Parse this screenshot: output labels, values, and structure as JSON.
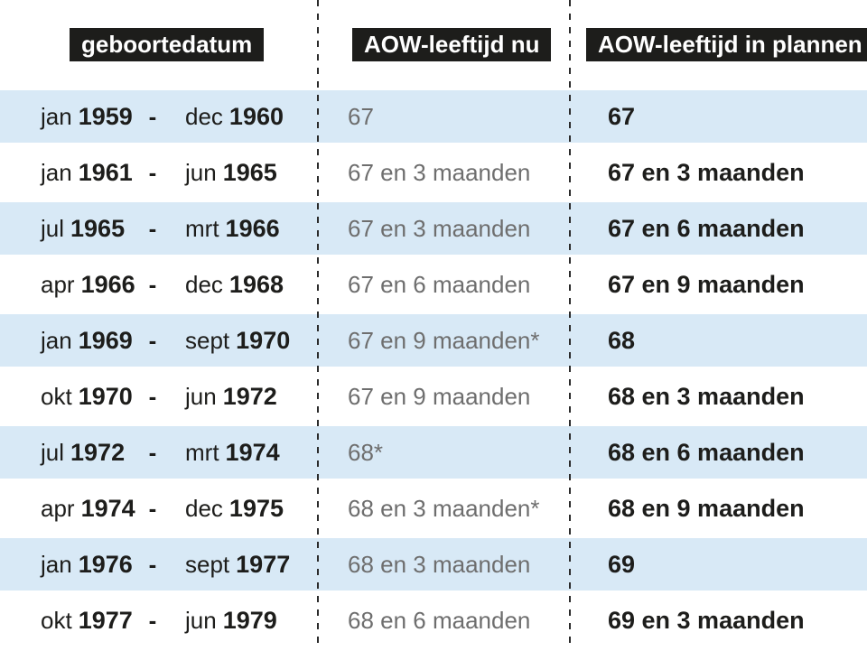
{
  "colors": {
    "header_bg": "#1d1d1b",
    "header_text": "#ffffff",
    "row_highlight": "#d8e9f6",
    "text_primary": "#1d1d1b",
    "text_secondary": "#6e6e6e",
    "divider": "#2b2b2b"
  },
  "table": {
    "headers": [
      "geboortedatum",
      "AOW-leeftijd nu",
      "AOW-leeftijd in plannen"
    ],
    "range_separator": "-",
    "rows": [
      {
        "from_month": "jan",
        "from_year": "1959",
        "to_month": "dec",
        "to_year": "1960",
        "now": "67",
        "plan": "67"
      },
      {
        "from_month": "jan",
        "from_year": "1961",
        "to_month": "jun",
        "to_year": "1965",
        "now": "67 en 3 maanden",
        "plan": "67 en 3 maanden"
      },
      {
        "from_month": "jul",
        "from_year": "1965",
        "to_month": "mrt",
        "to_year": "1966",
        "now": "67 en 3 maanden",
        "plan": "67 en 6 maanden"
      },
      {
        "from_month": "apr",
        "from_year": "1966",
        "to_month": "dec",
        "to_year": "1968",
        "now": "67 en 6 maanden",
        "plan": "67 en 9 maanden"
      },
      {
        "from_month": "jan",
        "from_year": "1969",
        "to_month": "sept",
        "to_year": "1970",
        "now": "67 en 9 maanden*",
        "plan": "68"
      },
      {
        "from_month": "okt",
        "from_year": "1970",
        "to_month": "jun",
        "to_year": "1972",
        "now": "67 en 9 maanden",
        "plan": "68 en 3 maanden"
      },
      {
        "from_month": "jul",
        "from_year": "1972",
        "to_month": "mrt",
        "to_year": "1974",
        "now": "68*",
        "plan": "68 en 6 maanden"
      },
      {
        "from_month": "apr",
        "from_year": "1974",
        "to_month": "dec",
        "to_year": "1975",
        "now": "68 en 3 maanden*",
        "plan": "68 en 9 maanden"
      },
      {
        "from_month": "jan",
        "from_year": "1976",
        "to_month": "sept",
        "to_year": "1977",
        "now": "68 en 3 maanden",
        "plan": "69"
      },
      {
        "from_month": "okt",
        "from_year": "1977",
        "to_month": "jun",
        "to_year": "1979",
        "now": "68 en 6 maanden",
        "plan": "69 en 3 maanden"
      }
    ]
  },
  "chart_data": {
    "type": "table",
    "columns": [
      "geboortedatum",
      "AOW-leeftijd nu",
      "AOW-leeftijd in plannen"
    ],
    "rows": [
      [
        "jan 1959 - dec 1960",
        "67",
        "67"
      ],
      [
        "jan 1961 - jun 1965",
        "67 en 3 maanden",
        "67 en 3 maanden"
      ],
      [
        "jul 1965 - mrt 1966",
        "67 en 3 maanden",
        "67 en 6 maanden"
      ],
      [
        "apr 1966 - dec 1968",
        "67 en 6 maanden",
        "67 en 9 maanden"
      ],
      [
        "jan 1969 - sept 1970",
        "67 en 9 maanden*",
        "68"
      ],
      [
        "okt 1970 - jun 1972",
        "67 en 9 maanden",
        "68 en 3 maanden"
      ],
      [
        "jul 1972 - mrt 1974",
        "68*",
        "68 en 6 maanden"
      ],
      [
        "apr 1974 - dec 1975",
        "68 en 3 maanden*",
        "68 en 9 maanden"
      ],
      [
        "jan 1976 - sept 1977",
        "68 en 3 maanden",
        "69"
      ],
      [
        "okt 1977 - jun 1979",
        "68 en 6 maanden",
        "69 en 3 maanden"
      ]
    ],
    "legend": "off",
    "grid": "off",
    "notes": "rows alternate light-blue/white; dashed vertical dividers between columns; * marks provisional values"
  }
}
